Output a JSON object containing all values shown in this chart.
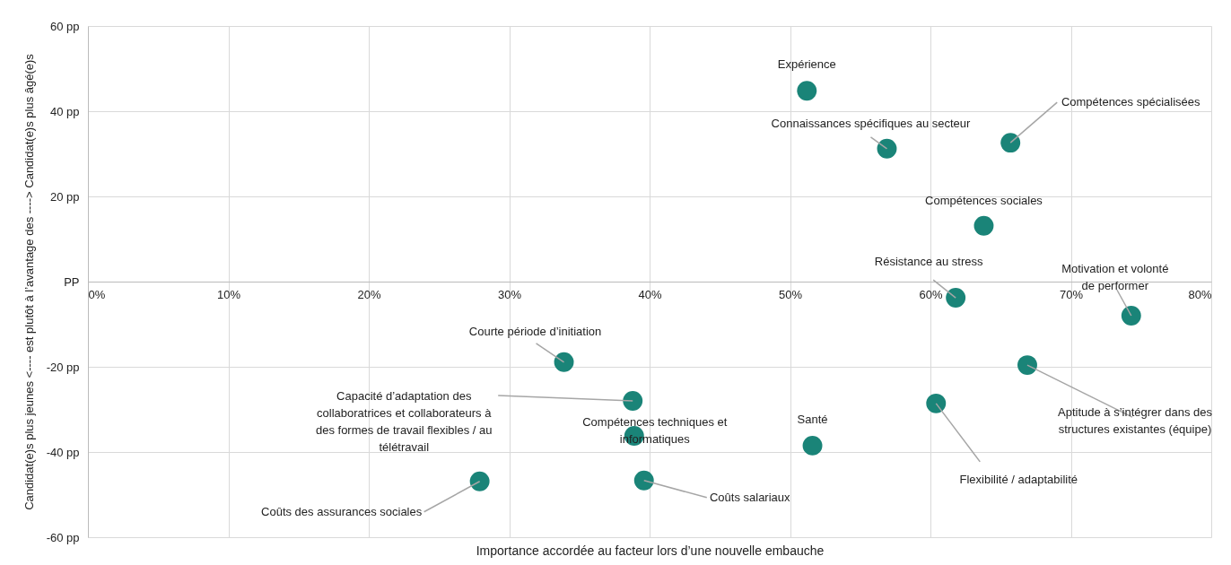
{
  "chart_data": {
    "type": "scatter",
    "xlabel": "Importance accordée au facteur lors d’une nouvelle embauche",
    "ylabel": "Candidat(e)s plus jeunes <---- est plutôt à l’avantage des ----> Candidat(e)s plus âgé(e)s",
    "x": [
      51.2,
      56.9,
      65.7,
      63.8,
      61.8,
      74.3,
      66.9,
      60.4,
      51.6,
      33.9,
      38.8,
      38.9,
      39.6,
      27.9
    ],
    "series": [
      {
        "color": "#1a8478",
        "values": [
          44.8,
          31.2,
          32.6,
          13.1,
          -3.8,
          -8.0,
          -19.6,
          -28.6,
          -38.5,
          -18.9,
          -28.0,
          -36.2,
          -46.7,
          -46.9
        ]
      }
    ],
    "xlim": [
      0,
      80
    ],
    "xticks": [
      {
        "value": 0,
        "label": "0%"
      },
      {
        "value": 10,
        "label": "10%"
      },
      {
        "value": 20,
        "label": "20%"
      },
      {
        "value": 30,
        "label": "30%"
      },
      {
        "value": 40,
        "label": "40%"
      },
      {
        "value": 50,
        "label": "50%"
      },
      {
        "value": 60,
        "label": "60%"
      },
      {
        "value": 70,
        "label": "70%"
      },
      {
        "value": 80,
        "label": "80%"
      }
    ],
    "ylim": [
      -60,
      60
    ],
    "yticks": [
      {
        "value": -60,
        "label": "-60 pp"
      },
      {
        "value": -40,
        "label": "-40 pp"
      },
      {
        "value": -20,
        "label": "-20 pp"
      },
      {
        "value": 0,
        "label": "PP"
      },
      {
        "value": 20,
        "label": "20 pp"
      },
      {
        "value": 40,
        "label": "40 pp"
      },
      {
        "value": 60,
        "label": "60 pp"
      }
    ],
    "grid": true,
    "marker": "circle",
    "annotations": [
      {
        "text": "Expérience",
        "x": 51.2,
        "y": 44.8
      },
      {
        "text": "Connaissances spécifiques au secteur",
        "x": 56.9,
        "y": 31.2
      },
      {
        "text": "Compétences spécialisées",
        "x": 65.7,
        "y": 32.6
      },
      {
        "text": "Compétences sociales",
        "x": 63.8,
        "y": 13.1
      },
      {
        "text": "Résistance au stress",
        "x": 61.8,
        "y": -3.8
      },
      {
        "text": "Motivation et volonté\nde performer",
        "x": 74.3,
        "y": -8.0
      },
      {
        "text": "Aptitude à s’intégrer dans des\nstructures existantes (équipe)",
        "x": 66.9,
        "y": -19.6
      },
      {
        "text": "Flexibilité / adaptabilité",
        "x": 60.4,
        "y": -28.6
      },
      {
        "text": "Santé",
        "x": 51.6,
        "y": -38.5
      },
      {
        "text": "Courte période d’initiation",
        "x": 33.9,
        "y": -18.9
      },
      {
        "text": "Capacité d’adaptation des\ncollaboratrices et collaborateurs à\ndes formes de travail flexibles / au\ntélétravail",
        "x": 38.8,
        "y": -28.0
      },
      {
        "text": "Compétences techniques et\ninformatiques",
        "x": 38.9,
        "y": -36.2
      },
      {
        "text": "Coûts salariaux",
        "x": 39.6,
        "y": -46.7
      },
      {
        "text": "Coûts des assurances sociales",
        "x": 27.9,
        "y": -46.9
      }
    ]
  }
}
